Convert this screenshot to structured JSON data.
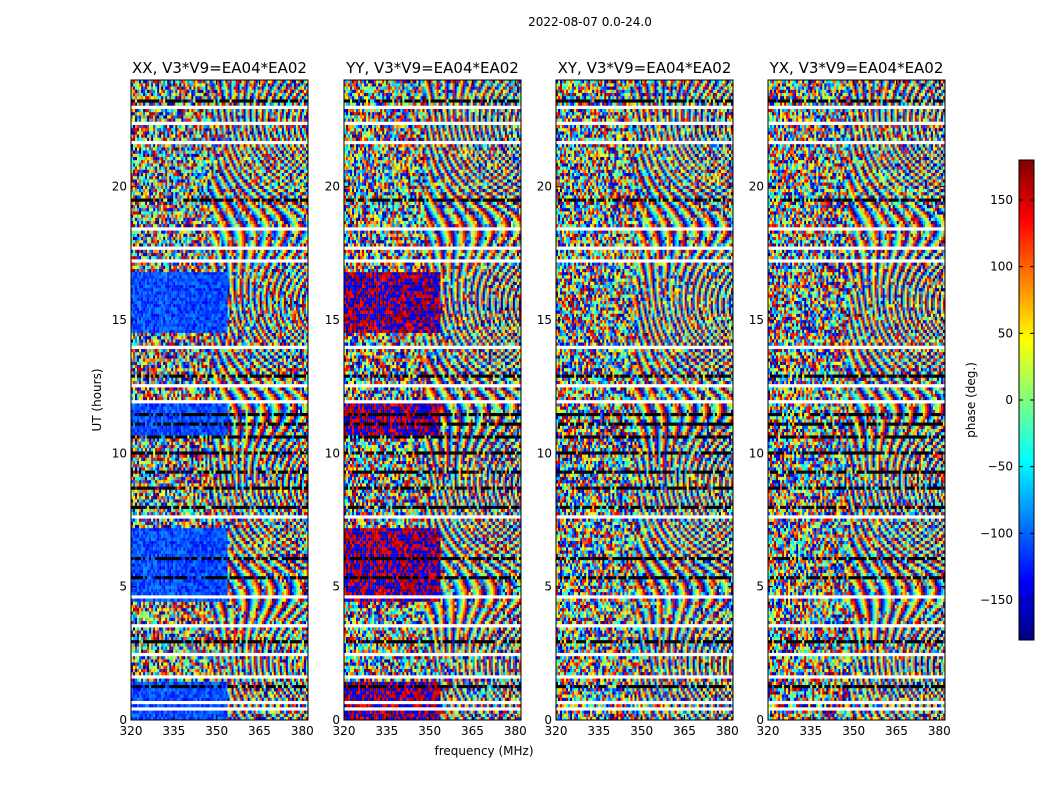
{
  "chart_data": {
    "type": "heatmap",
    "suptitle": "2022-08-07 0.0-24.0",
    "xlabel": "frequency (MHz)",
    "ylabel": "UT (hours)",
    "xlim": [
      320,
      382
    ],
    "ylim": [
      0,
      24
    ],
    "x_ticks": [
      320,
      335,
      350,
      365,
      380
    ],
    "y_ticks": [
      0,
      5,
      10,
      15,
      20
    ],
    "colormap": "jet",
    "panels": [
      {
        "title": "XX, V3*V9=EA04*EA02",
        "polarization": "XX",
        "baseline": "V3*V9=EA04*EA02",
        "parallel_hand": true
      },
      {
        "title": "YY, V3*V9=EA04*EA02",
        "polarization": "YY",
        "baseline": "V3*V9=EA04*EA02",
        "parallel_hand": true
      },
      {
        "title": "XY, V3*V9=EA04*EA02",
        "polarization": "XY",
        "baseline": "V3*V9=EA04*EA02",
        "parallel_hand": false
      },
      {
        "title": "YX, V3*V9=EA04*EA02",
        "polarization": "YX",
        "baseline": "V3*V9=EA04*EA02",
        "parallel_hand": false
      }
    ],
    "flagged_ut_hours": [
      0.3,
      0.6,
      1.5,
      2.35,
      3.5,
      4.5,
      7.5,
      11.9,
      12.5,
      13.9,
      17.2,
      17.6,
      18.3,
      21.6,
      22.3,
      22.9
    ],
    "dark_ut_hours": [
      1.2,
      2.9,
      5.3,
      6.0,
      7.9,
      8.6,
      9.2,
      9.9,
      10.5,
      11.0,
      11.4,
      12.8,
      19.4,
      23.1
    ],
    "colorbar": {
      "label": "phase (deg.)",
      "range": [
        -180,
        180
      ],
      "ticks": [
        150,
        100,
        50,
        0,
        -50,
        -100,
        -150
      ],
      "tick_labels": [
        "150",
        "100",
        "50",
        "0",
        "−50",
        "−100",
        "−150"
      ]
    }
  }
}
